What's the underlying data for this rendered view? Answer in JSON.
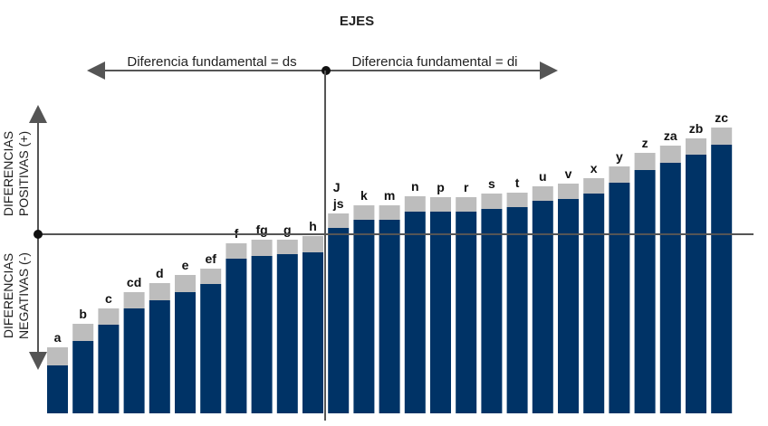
{
  "title": "EJES",
  "upper_arrow": {
    "left_label": "Diferencia fundamental = ds",
    "right_label": "Diferencia fundamental = di"
  },
  "vertical_axis": {
    "positive_line1": "DIFERENCIAS",
    "positive_line2": "POSITIVAS (+)",
    "negative_line1": "DIFERENCIAS",
    "negative_line2": "NEGATIVAS (-)"
  },
  "colors": {
    "base_bar": "#003366",
    "tolerance_band": "#bdbdbd",
    "axis": "#555555"
  },
  "chart_data": {
    "type": "bar",
    "categories": [
      "a",
      "b",
      "c",
      "cd",
      "d",
      "e",
      "ef",
      "f",
      "fg",
      "g",
      "h",
      "js",
      "k",
      "m",
      "n",
      "p",
      "r",
      "s",
      "t",
      "u",
      "v",
      "x",
      "y",
      "z",
      "za",
      "zb",
      "zc"
    ],
    "extra_label": "J",
    "fundamental_deviation_top": [
      -145,
      -118,
      -100,
      -82,
      -73,
      -64,
      -55,
      -27,
      -24,
      -22,
      -20,
      7,
      16,
      16,
      25,
      25,
      25,
      28,
      30,
      37,
      39,
      45,
      57,
      71,
      79,
      88,
      99
    ],
    "tolerance_band_height": [
      20,
      19,
      18,
      18,
      19,
      19,
      17,
      17,
      18,
      16,
      18,
      16,
      16,
      16,
      17,
      16,
      16,
      17,
      16,
      16,
      17,
      17,
      18,
      19,
      19,
      18,
      19
    ]
  }
}
